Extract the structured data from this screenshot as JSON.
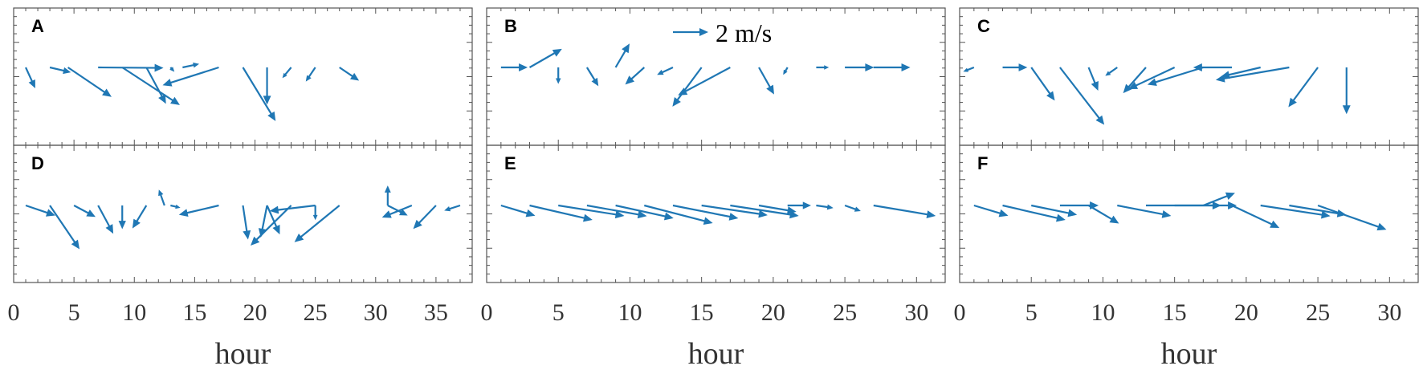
{
  "colors": {
    "arrow": "#1f77b4",
    "axis": "#555555",
    "text": "#333333"
  },
  "chart_data": {
    "type": "quiver",
    "xlabel": "hour",
    "scale_label": "2 m/s",
    "scale_value": 2,
    "columns": [
      {
        "xlim": [
          0,
          38
        ],
        "xticks": [
          0,
          5,
          10,
          15,
          20,
          25,
          30,
          35
        ]
      },
      {
        "xlim": [
          0,
          32
        ],
        "xticks": [
          0,
          5,
          10,
          15,
          20,
          25,
          30
        ]
      },
      {
        "xlim": [
          0,
          32
        ],
        "xticks": [
          0,
          5,
          10,
          15,
          20,
          25,
          30
        ]
      }
    ],
    "panels": [
      {
        "id": "A",
        "label": "A",
        "vectors": [
          [
            1,
            0.54,
            -1.18
          ],
          [
            3,
            1.19,
            -0.28
          ],
          [
            4.5,
            2.47,
            -1.67
          ],
          [
            7,
            3.7,
            -0.03
          ],
          [
            9,
            3.26,
            -2.13
          ],
          [
            11,
            1.11,
            -2.06
          ],
          [
            13,
            0.22,
            -0.25
          ],
          [
            14,
            0.94,
            0.2
          ],
          [
            17,
            -3.18,
            -1.01
          ],
          [
            19,
            1.85,
            -3.04
          ],
          [
            21,
            0.0,
            -2.11
          ],
          [
            23,
            -0.5,
            -0.6
          ],
          [
            25,
            -0.54,
            -0.8
          ],
          [
            27,
            1.11,
            -0.75
          ]
        ]
      },
      {
        "id": "B",
        "label": "B",
        "vectors": [
          [
            1,
            1.51,
            0.0
          ],
          [
            3,
            1.83,
            1.05
          ],
          [
            5,
            0.0,
            -0.94
          ],
          [
            7,
            0.65,
            -1.06
          ],
          [
            9,
            0.79,
            1.35
          ],
          [
            11,
            -1.08,
            -0.97
          ],
          [
            13,
            -0.9,
            -0.42
          ],
          [
            15,
            -1.65,
            -2.22
          ],
          [
            17,
            -2.96,
            -1.58
          ],
          [
            19,
            0.86,
            -1.53
          ],
          [
            21,
            -0.25,
            -0.42
          ],
          [
            23,
            0.72,
            0.0
          ],
          [
            25,
            1.65,
            0.0
          ],
          [
            27,
            2.08,
            0.0
          ]
        ]
      },
      {
        "id": "C",
        "label": "C",
        "vectors": [
          [
            1,
            -0.61,
            -0.24
          ],
          [
            3,
            1.4,
            0.0
          ],
          [
            5,
            1.33,
            -1.88
          ],
          [
            7,
            2.51,
            -3.25
          ],
          [
            9,
            0.54,
            -1.32
          ],
          [
            11,
            -0.68,
            -0.48
          ],
          [
            13,
            -1.29,
            -1.46
          ],
          [
            15,
            -2.62,
            -1.23
          ],
          [
            17,
            -3.16,
            -0.98
          ],
          [
            19,
            -2.19,
            0.0
          ],
          [
            21,
            -2.26,
            -0.53
          ],
          [
            23,
            -4.16,
            -0.71
          ],
          [
            25,
            -1.67,
            -2.25
          ],
          [
            27,
            0.0,
            -2.65
          ]
        ]
      },
      {
        "id": "D",
        "label": "D",
        "vectors": [
          [
            1,
            1.68,
            -0.57
          ],
          [
            3,
            1.68,
            -2.48
          ],
          [
            5,
            1.22,
            -0.65
          ],
          [
            7,
            0.86,
            -1.6
          ],
          [
            9,
            0.0,
            -1.34
          ],
          [
            11,
            -0.79,
            -1.3
          ],
          [
            12.5,
            -0.32,
            0.9
          ],
          [
            13,
            0.56,
            -0.13
          ],
          [
            17,
            -2.26,
            -0.53
          ],
          [
            19,
            0.29,
            -1.93
          ],
          [
            21,
            -0.36,
            -1.81
          ],
          [
            21,
            0.72,
            -1.64
          ],
          [
            23,
            -2.3,
            -2.27
          ],
          [
            25,
            -2.59,
            -0.31
          ],
          [
            25,
            0.0,
            -0.83
          ],
          [
            27,
            -2.55,
            -2.08
          ],
          [
            31,
            0.0,
            1.13
          ],
          [
            31,
            1.13,
            -0.57
          ],
          [
            33,
            -1.69,
            -0.68
          ],
          [
            35,
            -1.29,
            -1.33
          ],
          [
            37,
            -0.9,
            -0.29
          ]
        ]
      },
      {
        "id": "E",
        "label": "E",
        "vectors": [
          [
            1,
            1.94,
            -0.58
          ],
          [
            3,
            3.56,
            -0.82
          ],
          [
            5,
            3.74,
            -0.59
          ],
          [
            7,
            3.39,
            -0.6
          ],
          [
            9,
            3.28,
            -0.72
          ],
          [
            11,
            3.88,
            -1.0
          ],
          [
            13,
            3.7,
            -0.73
          ],
          [
            15,
            3.74,
            -0.55
          ],
          [
            17,
            3.88,
            -0.59
          ],
          [
            19,
            2.12,
            -0.36
          ],
          [
            21,
            1.33,
            0.0
          ],
          [
            23,
            0.97,
            -0.14
          ],
          [
            25,
            0.9,
            -0.32
          ],
          [
            27,
            3.52,
            -0.59
          ]
        ]
      },
      {
        "id": "F",
        "label": "F",
        "vectors": [
          [
            1,
            1.94,
            -0.58
          ],
          [
            3,
            3.56,
            -0.82
          ],
          [
            5,
            2.59,
            -0.53
          ],
          [
            7,
            2.19,
            0.0
          ],
          [
            9,
            1.72,
            -1.02
          ],
          [
            11,
            3.05,
            -0.59
          ],
          [
            13,
            4.27,
            0.0
          ],
          [
            15,
            3.52,
            0.0
          ],
          [
            17,
            1.8,
            0.71
          ],
          [
            19,
            2.69,
            -1.27
          ],
          [
            21,
            3.95,
            -0.6
          ],
          [
            23,
            3.23,
            -0.53
          ],
          [
            25,
            3.88,
            -1.37
          ]
        ]
      }
    ]
  }
}
